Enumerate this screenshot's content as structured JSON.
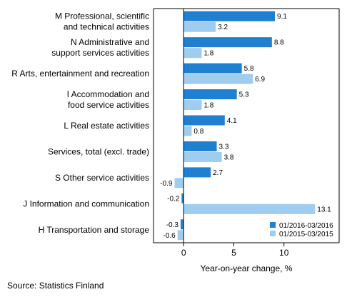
{
  "chart_data": {
    "type": "bar",
    "orientation": "horizontal",
    "categories": [
      [
        "M Professional, scientific",
        "and technical activities"
      ],
      [
        "N Administrative and",
        "support services activities"
      ],
      [
        "R Arts, entertainment and recreation"
      ],
      [
        "I Accommodation and",
        "food service activities"
      ],
      [
        "L Real estate activities"
      ],
      [
        "Services, total (excl. trade)"
      ],
      [
        "S Other service activities"
      ],
      [
        "J Information and communication"
      ],
      [
        "H Transportation and storage"
      ]
    ],
    "series": [
      {
        "name": "01/2016-03/2016",
        "color": "#1f7fd0",
        "values": [
          9.1,
          8.8,
          5.8,
          5.3,
          4.1,
          3.3,
          2.7,
          -0.2,
          -0.3
        ],
        "labels": [
          "9.1",
          "8.8",
          "5.8",
          "5.3",
          "4.1",
          "3.3",
          "2.7",
          "-0.2",
          "-0.3"
        ]
      },
      {
        "name": "01/2015-03/2015",
        "color": "#9fcdf0",
        "values": [
          3.2,
          1.8,
          6.9,
          1.8,
          0.8,
          3.8,
          -0.9,
          13.1,
          -0.6
        ],
        "labels": [
          "3.2",
          "1.8",
          "6.9",
          "1.8",
          "0.8",
          "3.8",
          "-0.9",
          "13.1",
          "-0.6"
        ]
      }
    ],
    "xlim": [
      -3,
      15.5
    ],
    "xticks": [
      0,
      5,
      10
    ],
    "xtick_labels": [
      "0",
      "5",
      "10"
    ],
    "xlabel": "Year-on-year change, %",
    "legend_position": "bottom-right",
    "grid": false
  },
  "source": "Source: Statistics Finland"
}
